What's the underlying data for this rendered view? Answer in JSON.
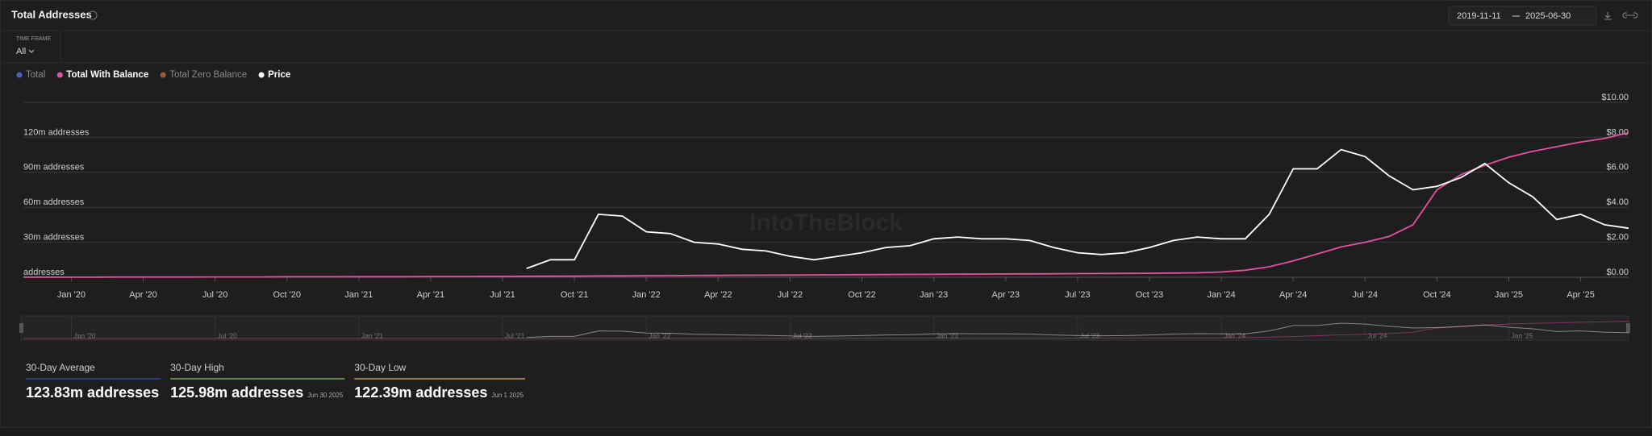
{
  "header": {
    "title": "Total Addresses",
    "date_from": "2019-11-11",
    "date_to": "2025-06-30",
    "timeframe_label": "TIME FRAME",
    "timeframe": "All"
  },
  "chart_data": {
    "type": "line",
    "watermark": "IntoTheBlock",
    "x": [
      "2019-11",
      "2019-12",
      "2020-01",
      "2020-02",
      "2020-03",
      "2020-04",
      "2020-05",
      "2020-06",
      "2020-07",
      "2020-08",
      "2020-09",
      "2020-10",
      "2020-11",
      "2020-12",
      "2021-01",
      "2021-02",
      "2021-03",
      "2021-04",
      "2021-05",
      "2021-06",
      "2021-07",
      "2021-08",
      "2021-09",
      "2021-10",
      "2021-11",
      "2021-12",
      "2022-01",
      "2022-02",
      "2022-03",
      "2022-04",
      "2022-05",
      "2022-06",
      "2022-07",
      "2022-08",
      "2022-09",
      "2022-10",
      "2022-11",
      "2022-12",
      "2023-01",
      "2023-02",
      "2023-03",
      "2023-04",
      "2023-05",
      "2023-06",
      "2023-07",
      "2023-08",
      "2023-09",
      "2023-10",
      "2023-11",
      "2023-12",
      "2024-01",
      "2024-02",
      "2024-03",
      "2024-04",
      "2024-05",
      "2024-06",
      "2024-07",
      "2024-08",
      "2024-09",
      "2024-10",
      "2024-11",
      "2024-12",
      "2025-01",
      "2025-02",
      "2025-03",
      "2025-04",
      "2025-05",
      "2025-06"
    ],
    "xlim": [
      "2019-11",
      "2025-06"
    ],
    "xticks": [
      {
        "value": "2020-01",
        "label": "Jan '20"
      },
      {
        "value": "2020-04",
        "label": "Apr '20"
      },
      {
        "value": "2020-07",
        "label": "Jul '20"
      },
      {
        "value": "2020-10",
        "label": "Oct '20"
      },
      {
        "value": "2021-01",
        "label": "Jan '21"
      },
      {
        "value": "2021-04",
        "label": "Apr '21"
      },
      {
        "value": "2021-07",
        "label": "Jul '21"
      },
      {
        "value": "2021-10",
        "label": "Oct '21"
      },
      {
        "value": "2022-01",
        "label": "Jan '22"
      },
      {
        "value": "2022-04",
        "label": "Apr '22"
      },
      {
        "value": "2022-07",
        "label": "Jul '22"
      },
      {
        "value": "2022-10",
        "label": "Oct '22"
      },
      {
        "value": "2023-01",
        "label": "Jan '23"
      },
      {
        "value": "2023-04",
        "label": "Apr '23"
      },
      {
        "value": "2023-07",
        "label": "Jul '23"
      },
      {
        "value": "2023-10",
        "label": "Oct '23"
      },
      {
        "value": "2024-01",
        "label": "Jan '24"
      },
      {
        "value": "2024-04",
        "label": "Apr '24"
      },
      {
        "value": "2024-07",
        "label": "Jul '24"
      },
      {
        "value": "2024-10",
        "label": "Oct '24"
      },
      {
        "value": "2025-01",
        "label": "Jan '25"
      },
      {
        "value": "2025-04",
        "label": "Apr '25"
      }
    ],
    "ylim": [
      0,
      150
    ],
    "yticks": [
      {
        "value": 0,
        "label": "addresses"
      },
      {
        "value": 30,
        "label": "30m addresses"
      },
      {
        "value": 60,
        "label": "60m addresses"
      },
      {
        "value": 90,
        "label": "90m addresses"
      },
      {
        "value": 120,
        "label": "120m addresses"
      }
    ],
    "y2lim": [
      0,
      10
    ],
    "y2ticks": [
      {
        "value": 0,
        "label": "$0.00"
      },
      {
        "value": 2,
        "label": "$2.00"
      },
      {
        "value": 4,
        "label": "$4.00"
      },
      {
        "value": 6,
        "label": "$6.00"
      },
      {
        "value": 8,
        "label": "$8.00"
      },
      {
        "value": 10,
        "label": "$10.00"
      }
    ],
    "grid": true,
    "series": [
      {
        "name": "Total",
        "color": "#4b62b8",
        "hidden": true
      },
      {
        "name": "Total With Balance",
        "color": "#e8509f",
        "values": [
          0.1,
          0.1,
          0.1,
          0.1,
          0.2,
          0.2,
          0.2,
          0.2,
          0.3,
          0.3,
          0.3,
          0.4,
          0.4,
          0.4,
          0.5,
          0.5,
          0.5,
          0.6,
          0.6,
          0.7,
          0.7,
          0.8,
          0.9,
          1.0,
          1.1,
          1.2,
          1.3,
          1.4,
          1.5,
          1.6,
          1.7,
          1.8,
          1.9,
          2.0,
          2.1,
          2.2,
          2.3,
          2.4,
          2.5,
          2.6,
          2.7,
          2.8,
          2.9,
          3.0,
          3.1,
          3.2,
          3.3,
          3.4,
          3.6,
          3.8,
          4.5,
          6,
          9,
          14,
          20,
          26,
          30,
          35,
          45,
          75,
          88,
          96,
          103,
          108,
          112,
          116,
          119,
          124
        ]
      },
      {
        "name": "Total Zero Balance",
        "color": "#9a5b3a",
        "hidden": true
      },
      {
        "name": "Price",
        "color": "#ffffff",
        "axis": "y2",
        "values": [
          null,
          null,
          null,
          null,
          null,
          null,
          null,
          null,
          null,
          null,
          null,
          null,
          null,
          null,
          null,
          null,
          null,
          null,
          null,
          null,
          null,
          0.5,
          1.0,
          1.0,
          3.6,
          3.5,
          2.6,
          2.5,
          2.0,
          1.9,
          1.6,
          1.5,
          1.2,
          1.0,
          1.2,
          1.4,
          1.7,
          1.8,
          2.2,
          2.3,
          2.2,
          2.2,
          2.1,
          1.7,
          1.4,
          1.3,
          1.4,
          1.7,
          2.1,
          2.3,
          2.2,
          2.2,
          3.6,
          6.2,
          6.2,
          7.3,
          6.9,
          5.8,
          5.0,
          5.2,
          5.7,
          6.5,
          5.4,
          4.6,
          3.3,
          3.6,
          3.0,
          2.8
        ]
      }
    ]
  },
  "stats": [
    {
      "label": "30-Day Average",
      "value": "123.83m addresses"
    },
    {
      "label": "30-Day High",
      "value": "125.98m addresses",
      "date": "Jun 30 2025"
    },
    {
      "label": "30-Day Low",
      "value": "122.39m addresses",
      "date": "Jun 1 2025"
    }
  ]
}
